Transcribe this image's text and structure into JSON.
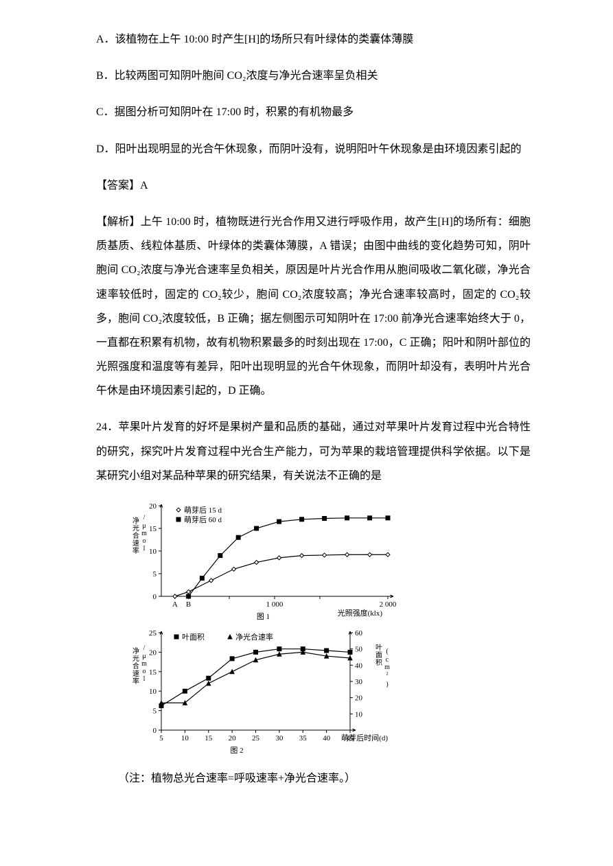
{
  "options": {
    "A": "A．该植物在上午 10:00 时产生[H]的场所只有叶绿体的类囊体薄膜",
    "B": "B．比较两图可知阴叶胞间 CO₂浓度与净光合速率呈负相关",
    "C": "C．据图分析可知阴叶在 17:00 时，积累的有机物最多",
    "D": "D．阳叶出现明显的光合午休现象，而阴叶没有，说明阳叶午休现象是由环境因素引起的"
  },
  "answer_label": "【答案】A",
  "explain": "【解析】上午 10:00 时，植物既进行光合作用又进行呼吸作用，故产生[H]的场所有：细胞质基质、线粒体基质、叶绿体的类囊体薄膜，A 错误；由图中曲线的变化趋势可知，阴叶胞间 CO₂浓度与净光合速率呈负相关，原因是叶片光合作用从胞间吸收二氧化碳，净光合速率较低时，固定的 CO₂较少，胞间 CO₂浓度较高；净光合速率较高时，固定的 CO₂较多，胞间 CO₂浓度较低，B 正确；据左侧图示可知阴叶在 17:00 前净光合速率始终大于 0，一直都在积累有机物，故有机物积累最多的时刻出现在 17:00，C 正确；阳叶和阴叶部位的光照强度和温度等有差异，阳叶出现明显的光合午休现象，而阴叶却没有，表明叶片光合午休是由环境因素引起的，D 正确。",
  "q24": "24．苹果叶片发育的好坏是果树产量和品质的基础，通过对苹果叶片发育过程中光合特性的研究，探究叶片发育过程中光合生产能力，可为苹果的栽培管理提供科学依据。以下是某研究小组对某品种苹果的研究结果，有关说法不正确的是",
  "note": "（注：植物总光合速率=呼吸速率+净光合速率。）",
  "chart1": {
    "type": "line",
    "title": "图 1",
    "x_label": "光照强度(klx)",
    "y_label": "净光合速率/(μmol·m⁻²·s⁻¹)",
    "legend": [
      {
        "marker": "open-diamond",
        "label": "萌芽后 15 d"
      },
      {
        "marker": "solid-square",
        "label": "萌芽后 60 d"
      }
    ],
    "x_ticks": [
      "A",
      "B",
      "",
      "1 000",
      "",
      "2 000"
    ],
    "x_tick_pos": [
      0.06,
      0.12,
      0.3,
      0.5,
      0.7,
      1.0
    ],
    "y_ticks": [
      0,
      5,
      10,
      15,
      20
    ],
    "ylim": [
      0,
      20
    ],
    "series15": [
      [
        0.06,
        0
      ],
      [
        0.12,
        1
      ],
      [
        0.22,
        3.5
      ],
      [
        0.32,
        6
      ],
      [
        0.42,
        7.5
      ],
      [
        0.52,
        8.5
      ],
      [
        0.62,
        9
      ],
      [
        0.72,
        9.1
      ],
      [
        0.82,
        9.2
      ],
      [
        0.92,
        9.2
      ],
      [
        1.0,
        9.2
      ]
    ],
    "series60": [
      [
        0.12,
        0
      ],
      [
        0.18,
        4
      ],
      [
        0.26,
        9
      ],
      [
        0.34,
        13
      ],
      [
        0.42,
        15
      ],
      [
        0.52,
        16.5
      ],
      [
        0.62,
        17
      ],
      [
        0.72,
        17.2
      ],
      [
        0.82,
        17.3
      ],
      [
        0.92,
        17.3
      ],
      [
        1.0,
        17.3
      ]
    ],
    "stroke": "#000000",
    "bg": "#ffffff"
  },
  "chart2": {
    "type": "dual-axis-line",
    "title": "图 2",
    "x_label": "萌芽后时间(d)",
    "y_label_left": "净光合速率/(μmol·m⁻²·s⁻¹)",
    "y_label_right": "叶面积(cm²)",
    "legend": [
      {
        "marker": "solid-square",
        "label": "叶面积"
      },
      {
        "marker": "solid-triangle",
        "label": "净光合速率"
      }
    ],
    "x_ticks": [
      5,
      10,
      15,
      20,
      25,
      30,
      35,
      40,
      45
    ],
    "y_ticks_left": [
      0,
      5,
      10,
      15,
      20,
      25
    ],
    "y_ticks_right": [
      10,
      20,
      30,
      40,
      50,
      60
    ],
    "ylim_left": [
      0,
      25
    ],
    "ylim_right": [
      0,
      60
    ],
    "area": [
      [
        5,
        15
      ],
      [
        10,
        24
      ],
      [
        15,
        32
      ],
      [
        20,
        44
      ],
      [
        25,
        48
      ],
      [
        30,
        50
      ],
      [
        35,
        50
      ],
      [
        40,
        49
      ],
      [
        45,
        48
      ]
    ],
    "rate": [
      [
        5,
        7
      ],
      [
        10,
        7
      ],
      [
        15,
        12
      ],
      [
        20,
        15
      ],
      [
        25,
        18
      ],
      [
        30,
        19.5
      ],
      [
        35,
        20
      ],
      [
        40,
        19
      ],
      [
        45,
        18.5
      ]
    ],
    "stroke": "#000000",
    "bg": "#ffffff"
  }
}
